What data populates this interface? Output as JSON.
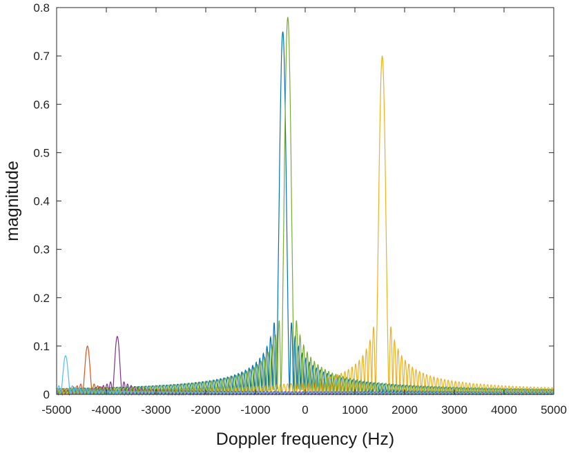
{
  "chart_data": {
    "type": "line",
    "title": "",
    "xlabel": "Doppler frequency (Hz)",
    "ylabel": "magnitude",
    "xlim": [
      -5000,
      5000
    ],
    "ylim": [
      0,
      0.8
    ],
    "x_ticks": [
      -5000,
      -4000,
      -3000,
      -2000,
      -1000,
      0,
      1000,
      2000,
      3000,
      4000,
      5000
    ],
    "y_ticks": [
      0,
      0.1,
      0.2,
      0.3,
      0.4,
      0.5,
      0.6,
      0.7,
      0.8
    ],
    "x_tick_labels": [
      "-5000",
      "-4000",
      "-3000",
      "-2000",
      "-1000",
      "0",
      "1000",
      "2000",
      "3000",
      "4000",
      "5000"
    ],
    "y_tick_labels": [
      "0",
      "0.1",
      "0.2",
      "0.3",
      "0.4",
      "0.5",
      "0.6",
      "0.7",
      "0.8"
    ],
    "grid": false,
    "legend": "none",
    "lobe_spacing_hz": 72,
    "series": [
      {
        "color": "#0072BD",
        "peak_x": -450,
        "peak_y": 0.75,
        "first_sidelobe_y": 0.165,
        "mainlobe_halfwidth_hz": 140
      },
      {
        "color": "#D95319",
        "peak_x": -4380,
        "peak_y": 0.1,
        "first_sidelobe_y": 0.02,
        "mainlobe_halfwidth_hz": 100
      },
      {
        "color": "#EDB120",
        "peak_x": 1550,
        "peak_y": 0.7,
        "first_sidelobe_y": 0.155,
        "mainlobe_halfwidth_hz": 140
      },
      {
        "color": "#7E2F8E",
        "peak_x": -3780,
        "peak_y": 0.12,
        "first_sidelobe_y": 0.025,
        "mainlobe_halfwidth_hz": 100
      },
      {
        "color": "#77AC30",
        "peak_x": -350,
        "peak_y": 0.78,
        "first_sidelobe_y": 0.17,
        "mainlobe_halfwidth_hz": 140
      },
      {
        "color": "#4DBEEE",
        "peak_x": -4820,
        "peak_y": 0.08,
        "first_sidelobe_y": 0.016,
        "mainlobe_halfwidth_hz": 100
      }
    ]
  }
}
